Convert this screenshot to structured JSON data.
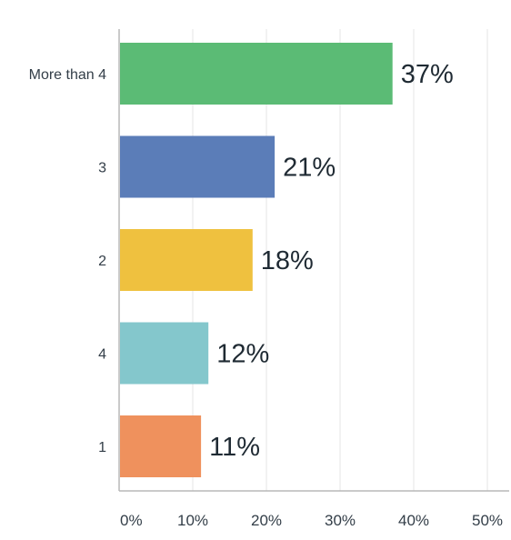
{
  "chart_data": {
    "type": "bar",
    "orientation": "horizontal",
    "categories": [
      "More than 4",
      "3",
      "2",
      "4",
      "1"
    ],
    "values": [
      37,
      21,
      18,
      12,
      11
    ],
    "data_labels": [
      "37%",
      "21%",
      "18%",
      "12%",
      "11%"
    ],
    "colors": [
      "#5bbb75",
      "#5b7db8",
      "#efc13f",
      "#84c7cc",
      "#ef915d"
    ],
    "x_ticks": [
      0,
      10,
      20,
      30,
      40,
      50
    ],
    "x_tick_labels": [
      "0%",
      "10%",
      "20%",
      "30%",
      "40%",
      "50%"
    ],
    "xlim": [
      0,
      50
    ],
    "grid": true,
    "legend": "none"
  }
}
